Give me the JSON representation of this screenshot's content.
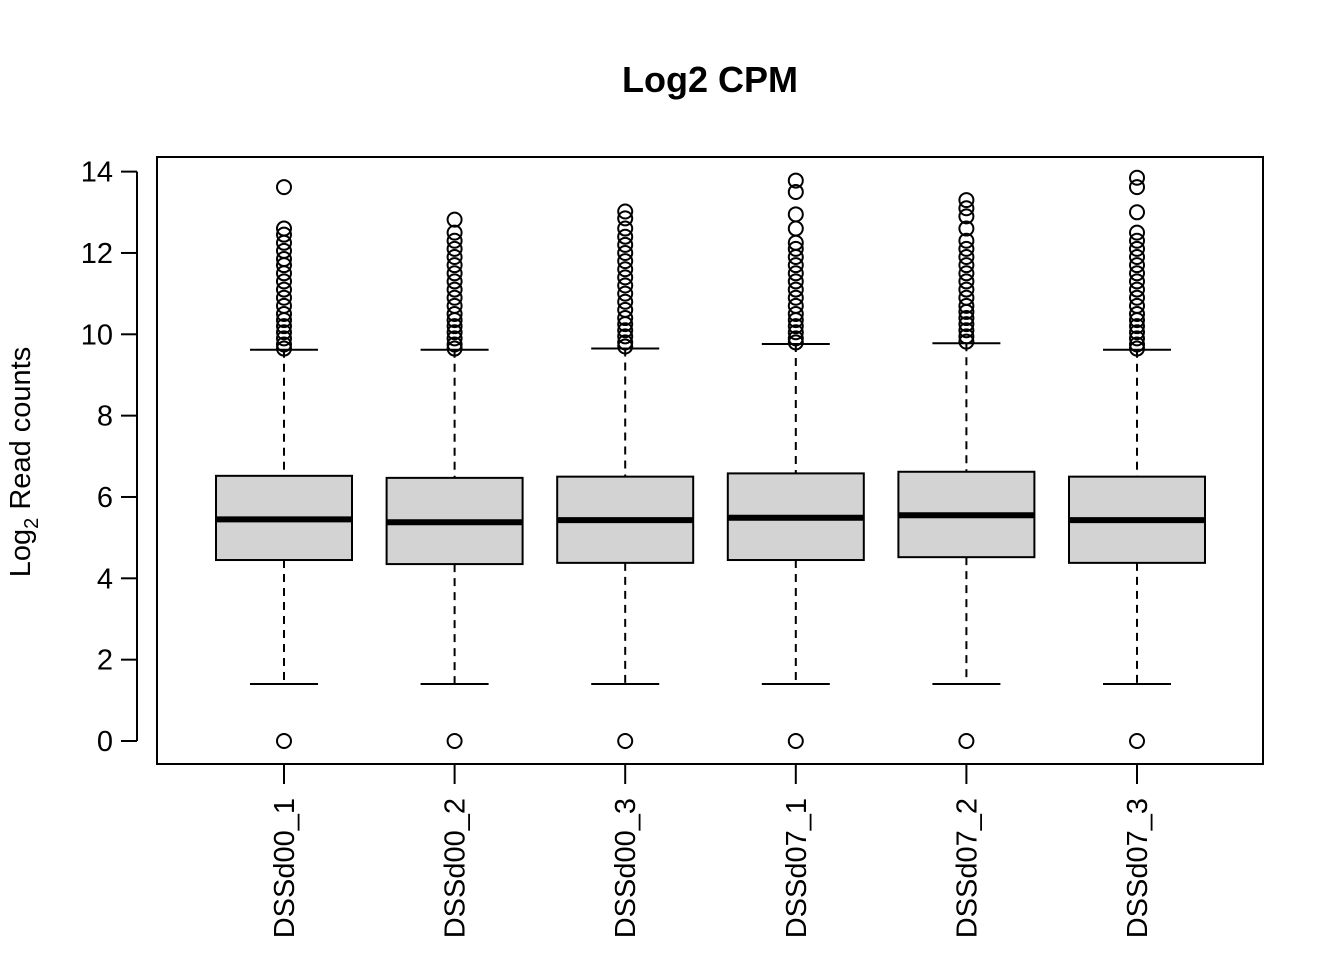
{
  "chart_data": {
    "type": "box",
    "title": "Log2 CPM",
    "xlabel": "",
    "ylabel": {
      "prefix": "Log",
      "subscript": "2",
      "suffix": " Read counts"
    },
    "ylim": [
      -0.55,
      14.4
    ],
    "yticks": [
      0,
      2,
      4,
      6,
      8,
      10,
      12,
      14
    ],
    "box_fill": "#d3d3d3",
    "categories": [
      "DSSd00_1",
      "DSSd00_2",
      "DSSd00_3",
      "DSSd07_1",
      "DSSd07_2",
      "DSSd07_3"
    ],
    "boxes": [
      {
        "whisker_low": 1.4,
        "q1": 4.45,
        "median": 5.45,
        "q3": 6.52,
        "whisker_high": 9.62,
        "outliers": [
          0,
          9.65,
          9.75,
          9.9,
          10.05,
          10.2,
          10.35,
          10.5,
          10.7,
          10.9,
          11.1,
          11.3,
          11.5,
          11.7,
          11.85,
          12.05,
          12.25,
          12.45,
          12.6,
          13.62
        ]
      },
      {
        "whisker_low": 1.4,
        "q1": 4.35,
        "median": 5.38,
        "q3": 6.47,
        "whisker_high": 9.62,
        "outliers": [
          0,
          9.65,
          9.75,
          9.9,
          10.05,
          10.2,
          10.35,
          10.5,
          10.7,
          10.9,
          11.1,
          11.3,
          11.5,
          11.7,
          11.9,
          12.1,
          12.3,
          12.5,
          12.82
        ]
      },
      {
        "whisker_low": 1.4,
        "q1": 4.38,
        "median": 5.43,
        "q3": 6.5,
        "whisker_high": 9.65,
        "outliers": [
          0,
          9.7,
          9.8,
          9.95,
          10.1,
          10.25,
          10.4,
          10.6,
          10.8,
          11.0,
          11.2,
          11.4,
          11.6,
          11.8,
          12.0,
          12.2,
          12.4,
          12.6,
          12.85,
          13.02
        ]
      },
      {
        "whisker_low": 1.4,
        "q1": 4.45,
        "median": 5.49,
        "q3": 6.58,
        "whisker_high": 9.76,
        "outliers": [
          0,
          9.8,
          9.9,
          10.05,
          10.2,
          10.35,
          10.5,
          10.7,
          10.9,
          11.1,
          11.3,
          11.5,
          11.7,
          11.9,
          12.1,
          12.25,
          12.6,
          12.95,
          13.5,
          13.78
        ]
      },
      {
        "whisker_low": 1.4,
        "q1": 4.52,
        "median": 5.55,
        "q3": 6.62,
        "whisker_high": 9.78,
        "outliers": [
          0,
          9.82,
          9.95,
          10.1,
          10.25,
          10.4,
          10.55,
          10.7,
          10.9,
          11.1,
          11.3,
          11.5,
          11.7,
          11.9,
          12.1,
          12.3,
          12.6,
          12.9,
          13.1,
          13.3
        ]
      },
      {
        "whisker_low": 1.4,
        "q1": 4.38,
        "median": 5.43,
        "q3": 6.5,
        "whisker_high": 9.62,
        "outliers": [
          0,
          9.65,
          9.75,
          9.9,
          10.05,
          10.2,
          10.35,
          10.5,
          10.7,
          10.9,
          11.1,
          11.3,
          11.5,
          11.7,
          11.9,
          12.1,
          12.3,
          12.5,
          13.0,
          13.62,
          13.85
        ]
      }
    ]
  }
}
